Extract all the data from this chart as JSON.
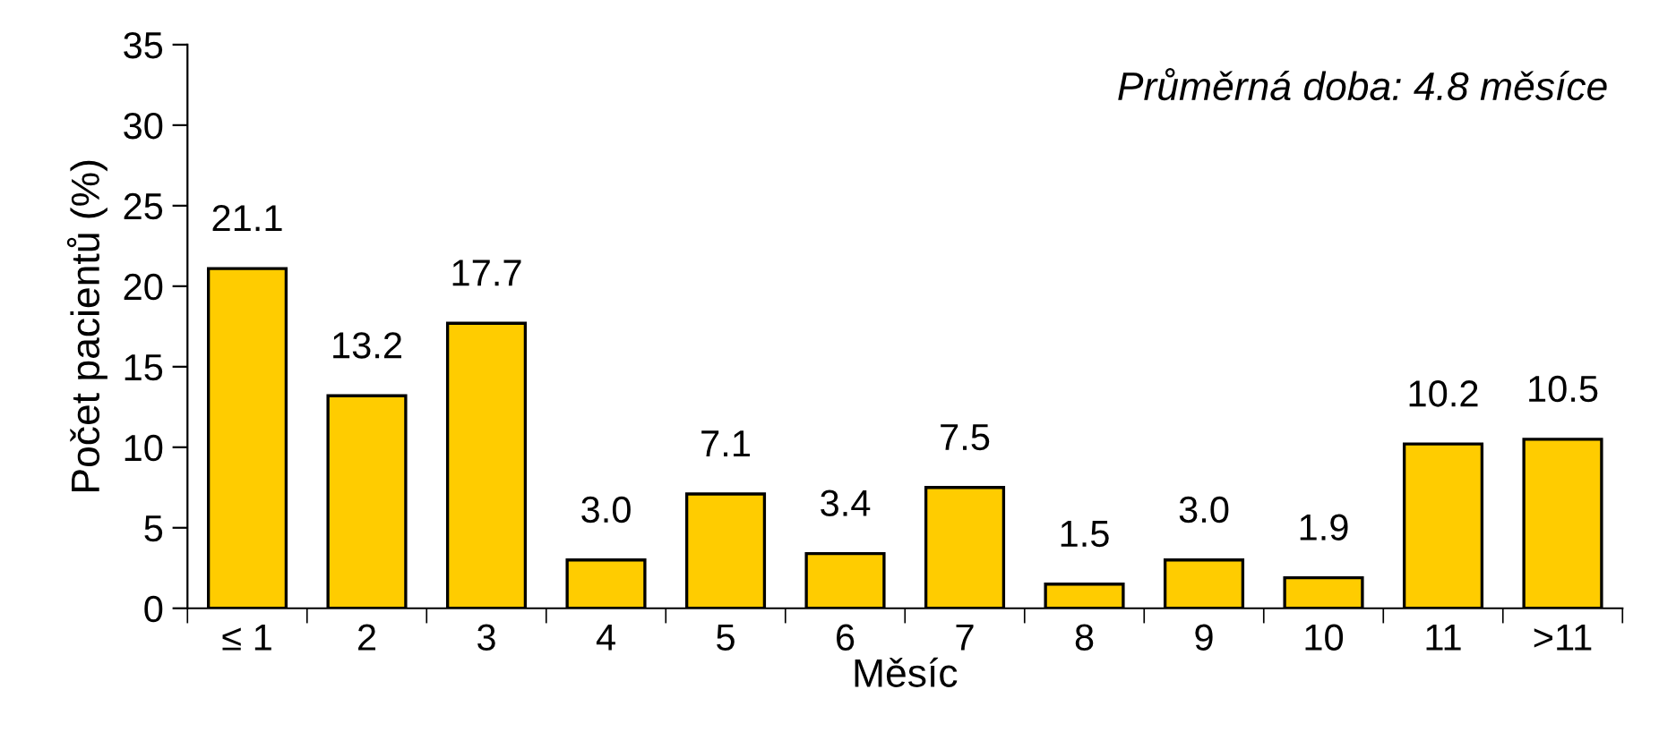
{
  "chart_data": {
    "type": "bar",
    "xlabel": "Měsíc",
    "ylabel": "Počet pacientů (%)",
    "annotations": [
      "Průměrná doba: 4.8 měsíce"
    ],
    "categories": [
      "≤ 1",
      "2",
      "3",
      "4",
      "5",
      "6",
      "7",
      "8",
      "9",
      "10",
      "11",
      ">11"
    ],
    "values": [
      21.1,
      13.2,
      17.7,
      3.0,
      7.1,
      3.4,
      7.5,
      1.5,
      3.0,
      1.9,
      10.2,
      10.5
    ],
    "value_labels": [
      "21.1",
      "13.2",
      "17.7",
      "3.0",
      "7.1",
      "3.4",
      "7.5",
      "1.5",
      "3.0",
      "1.9",
      "10.2",
      "10.5"
    ],
    "color": "#ffcc00",
    "ylim": [
      0,
      35
    ],
    "yticks": [
      0,
      5,
      10,
      15,
      20,
      25,
      30,
      35
    ],
    "grid": false,
    "legend": false
  }
}
